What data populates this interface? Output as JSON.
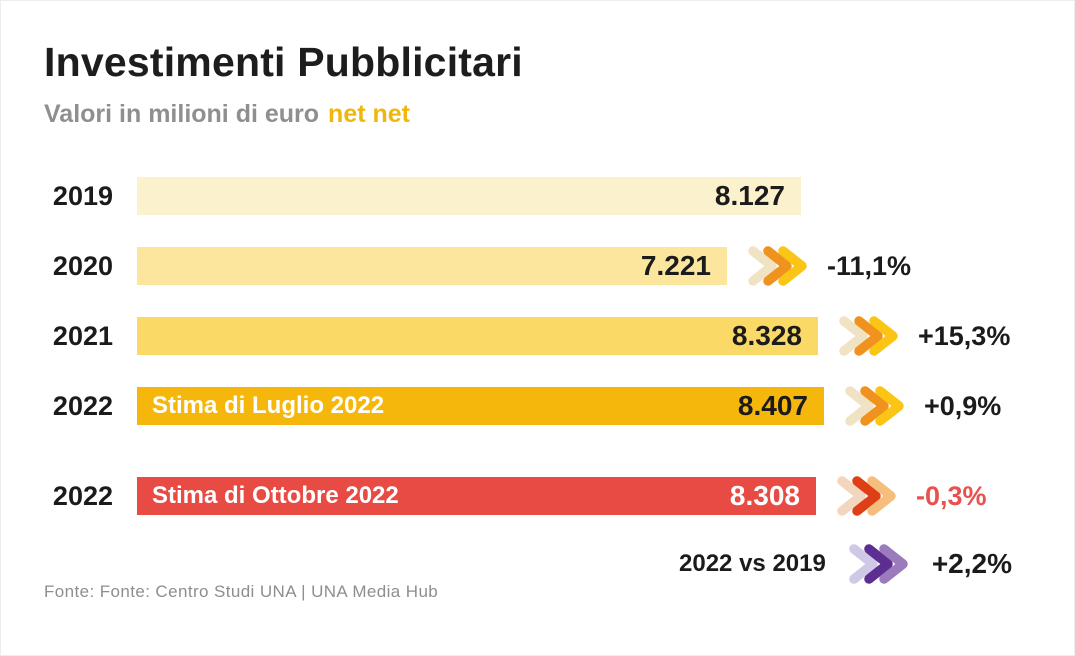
{
  "header": {
    "title": "Investimenti Pubblicitari",
    "subtitle": "Valori in milioni di euro",
    "subtitle_highlight": "net net",
    "subtitle_color": "#8f8f8f",
    "highlight_color": "#EFB70E"
  },
  "chart_data": {
    "type": "bar",
    "orientation": "horizontal",
    "title": "Investimenti Pubblicitari",
    "subtitle": "Valori in milioni di euro net net",
    "unit": "milioni di euro",
    "xlim": [
      0,
      8407
    ],
    "grid": false,
    "rows": [
      {
        "year": "2019",
        "value": 8127,
        "value_label": "8.127",
        "bar_label": "",
        "bar_color": "#FCF1CD",
        "value_text_color": "#1b1b1b",
        "pct": "",
        "pct_color": "",
        "chevron": "",
        "extra_gap": false
      },
      {
        "year": "2020",
        "value": 7221,
        "value_label": "7.221",
        "bar_label": "",
        "bar_color": "#FCE69E",
        "value_text_color": "#1b1b1b",
        "pct": "-11,1%",
        "pct_color": "#1b1b1b",
        "chevron": "yellow",
        "extra_gap": false
      },
      {
        "year": "2021",
        "value": 8328,
        "value_label": "8.328",
        "bar_label": "",
        "bar_color": "#FAD966",
        "value_text_color": "#1b1b1b",
        "pct": "+15,3%",
        "pct_color": "#1b1b1b",
        "chevron": "yellow",
        "extra_gap": false
      },
      {
        "year": "2022",
        "value": 8407,
        "value_label": "8.407",
        "bar_label": "Stima di Luglio 2022",
        "bar_color": "#F6B70D",
        "value_text_color": "#1b1b1b",
        "pct": "+0,9%",
        "pct_color": "#1b1b1b",
        "chevron": "yellow",
        "extra_gap": false
      },
      {
        "year": "2022",
        "value": 8308,
        "value_label": "8.308",
        "bar_label": "Stima di Ottobre 2022",
        "bar_color": "#E84B44",
        "value_text_color": "#ffffff",
        "pct": "-0,3%",
        "pct_color": "#E8524E",
        "chevron": "red",
        "extra_gap": true
      }
    ],
    "comparison": {
      "label": "2022 vs 2019",
      "pct": "+2,2%",
      "pct_color": "#1b1b1b",
      "chevron": "purple"
    }
  },
  "chevron_palettes": {
    "yellow": [
      "#EFE3C3",
      "#F0921E",
      "#FAC514"
    ],
    "red": [
      "#F4D5BD",
      "#DE3F16",
      "#F6BE7D"
    ],
    "purple": [
      "#CFC8E6",
      "#5C2E91",
      "#9C7BBC"
    ]
  },
  "layout_colors": {
    "background": "#ffffff",
    "title_text": "#1d1d1d",
    "year_text": "#1b1b1b",
    "footer_text": "#8e8e8e"
  },
  "footer": {
    "source": "Fonte: Fonte: Centro Studi UNA | UNA Media Hub"
  }
}
